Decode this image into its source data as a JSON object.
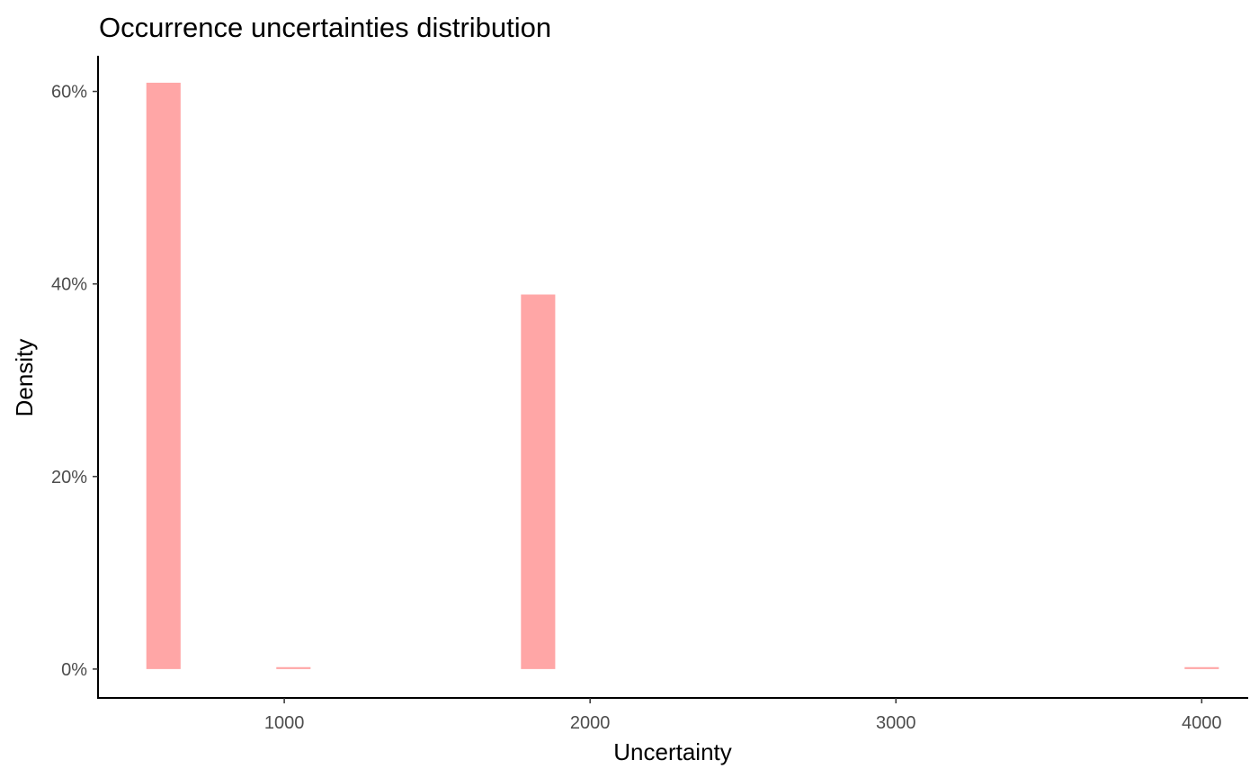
{
  "chart_data": {
    "type": "bar",
    "title": "Occurrence uncertainties distribution",
    "xlabel": "Uncertainty",
    "ylabel": "Density",
    "x_ticks": [
      1000,
      2000,
      3000,
      4000
    ],
    "x_tick_labels": [
      "1000",
      "2000",
      "3000",
      "4000"
    ],
    "y_ticks": [
      0,
      0.2,
      0.4,
      0.6
    ],
    "y_tick_labels": [
      "0%",
      "20%",
      "40%",
      "60%"
    ],
    "xlim": [
      391,
      4152
    ],
    "ylim": [
      -0.03,
      0.637
    ],
    "bin_width": 112,
    "bars": [
      {
        "x": 605,
        "value": 0.609
      },
      {
        "x": 1030,
        "value": 0.002
      },
      {
        "x": 1830,
        "value": 0.389
      },
      {
        "x": 4000,
        "value": 0.002
      }
    ],
    "bar_color": "#ffa6a6",
    "grid": false,
    "legend": "none"
  }
}
